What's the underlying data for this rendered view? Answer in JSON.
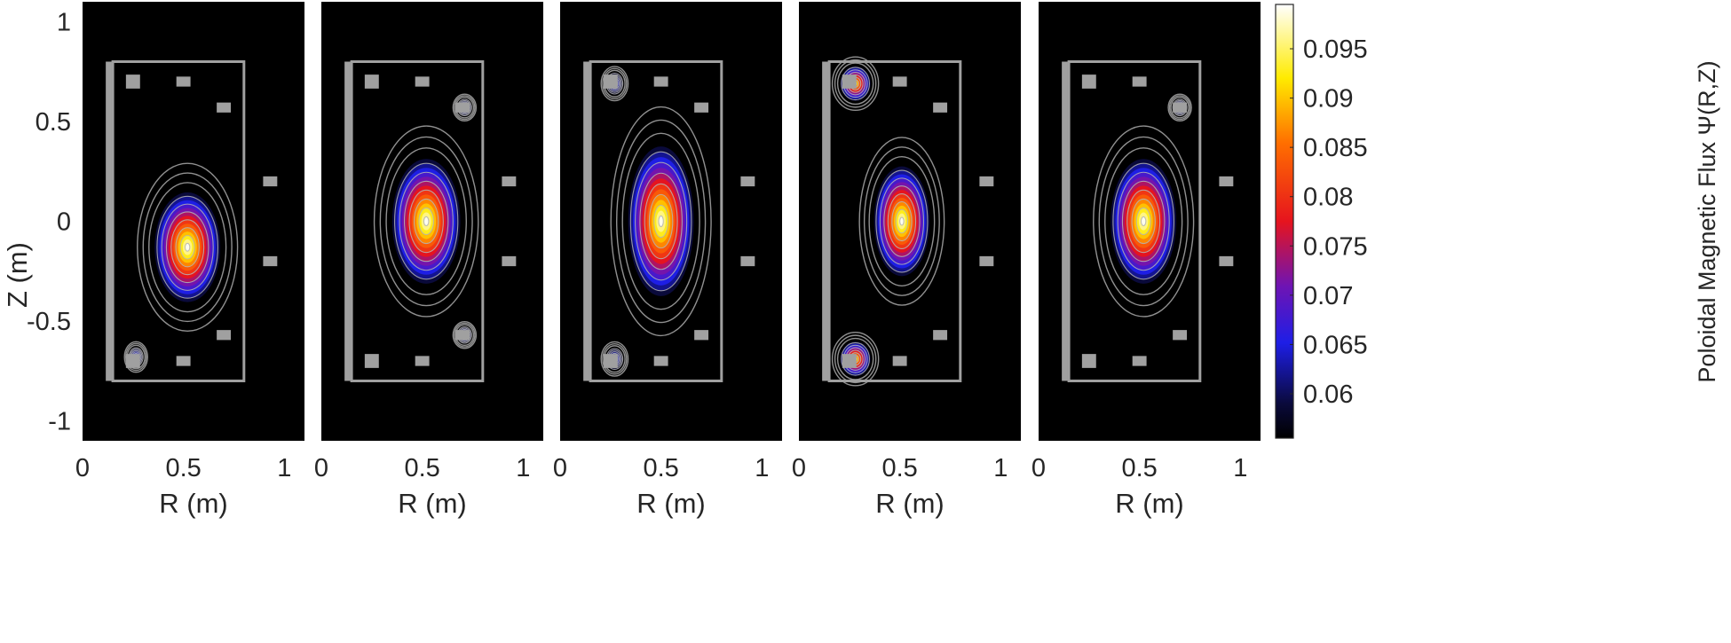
{
  "chart_data": {
    "type": "heatmap",
    "shared": {
      "xlabel": "R (m)",
      "ylabel": "Z (m)",
      "xlim": [
        0,
        1.1
      ],
      "ylim": [
        -1.1,
        1.1
      ],
      "xticks": [
        0,
        0.5,
        1
      ],
      "xtick_labels": [
        "0",
        "0.5",
        "1"
      ],
      "yticks": [
        1,
        0.5,
        0,
        -0.5,
        -1
      ],
      "ytick_labels": [
        "1",
        "0.5",
        "0",
        "-0.5",
        "-1"
      ],
      "background_color": "#000000",
      "vessel_color": "#a0a0a0",
      "contour_color": "#b4b4b4",
      "vessel": {
        "r_min": 0.15,
        "r_max": 0.8,
        "z_min": -0.8,
        "z_max": 0.8
      },
      "central_solenoid": {
        "r_min": 0.115,
        "r_max": 0.145,
        "z_min": -0.8,
        "z_max": 0.8
      },
      "coils": [
        {
          "r": 0.25,
          "z": 0.7,
          "w": 0.07,
          "h": 0.07
        },
        {
          "r": 0.5,
          "z": 0.7,
          "w": 0.07,
          "h": 0.05
        },
        {
          "r": 0.7,
          "z": 0.57,
          "w": 0.07,
          "h": 0.05
        },
        {
          "r": 0.93,
          "z": 0.2,
          "w": 0.07,
          "h": 0.05
        },
        {
          "r": 0.93,
          "z": -0.2,
          "w": 0.07,
          "h": 0.05
        },
        {
          "r": 0.7,
          "z": -0.57,
          "w": 0.07,
          "h": 0.05
        },
        {
          "r": 0.5,
          "z": -0.7,
          "w": 0.07,
          "h": 0.05
        },
        {
          "r": 0.25,
          "z": -0.7,
          "w": 0.07,
          "h": 0.07
        }
      ]
    },
    "panels": [
      {
        "peaks": [
          {
            "r": 0.52,
            "z": -0.13,
            "ra": 0.13,
            "za": 0.22,
            "psi": 0.099
          },
          {
            "r": 0.265,
            "z": -0.68,
            "ra": 0.03,
            "za": 0.04,
            "psi": 0.068
          }
        ]
      },
      {
        "peaks": [
          {
            "r": 0.52,
            "z": 0.0,
            "ra": 0.135,
            "za": 0.25,
            "psi": 0.099
          },
          {
            "r": 0.71,
            "z": 0.57,
            "ra": 0.03,
            "za": 0.035,
            "psi": 0.068
          },
          {
            "r": 0.71,
            "z": -0.57,
            "ra": 0.03,
            "za": 0.035,
            "psi": 0.068
          }
        ]
      },
      {
        "peaks": [
          {
            "r": 0.5,
            "z": 0.0,
            "ra": 0.13,
            "za": 0.3,
            "psi": 0.099
          },
          {
            "r": 0.27,
            "z": 0.69,
            "ra": 0.035,
            "za": 0.045,
            "psi": 0.068
          },
          {
            "r": 0.27,
            "z": -0.69,
            "ra": 0.035,
            "za": 0.045,
            "psi": 0.068
          }
        ]
      },
      {
        "peaks": [
          {
            "r": 0.51,
            "z": 0.0,
            "ra": 0.11,
            "za": 0.22,
            "psi": 0.099
          },
          {
            "r": 0.28,
            "z": 0.69,
            "ra": 0.06,
            "za": 0.07,
            "psi": 0.093
          },
          {
            "r": 0.28,
            "z": -0.69,
            "ra": 0.06,
            "za": 0.07,
            "psi": 0.093
          }
        ]
      },
      {
        "peaks": [
          {
            "r": 0.52,
            "z": 0.0,
            "ra": 0.13,
            "za": 0.25,
            "psi": 0.099
          },
          {
            "r": 0.7,
            "z": 0.57,
            "ra": 0.03,
            "za": 0.035,
            "psi": 0.068
          }
        ]
      }
    ],
    "colorbar": {
      "label": "Poloidal Magnetic Flux Ψ(R,Z)",
      "range": [
        0.0555,
        0.0995
      ],
      "ticks": [
        0.06,
        0.065,
        0.07,
        0.075,
        0.08,
        0.085,
        0.09,
        0.095
      ],
      "tick_labels": [
        "0.06",
        "0.065",
        "0.07",
        "0.075",
        "0.08",
        "0.085",
        "0.09",
        "0.095"
      ],
      "colormap": "hot-like (black-blue-red-yellow-white)"
    }
  }
}
